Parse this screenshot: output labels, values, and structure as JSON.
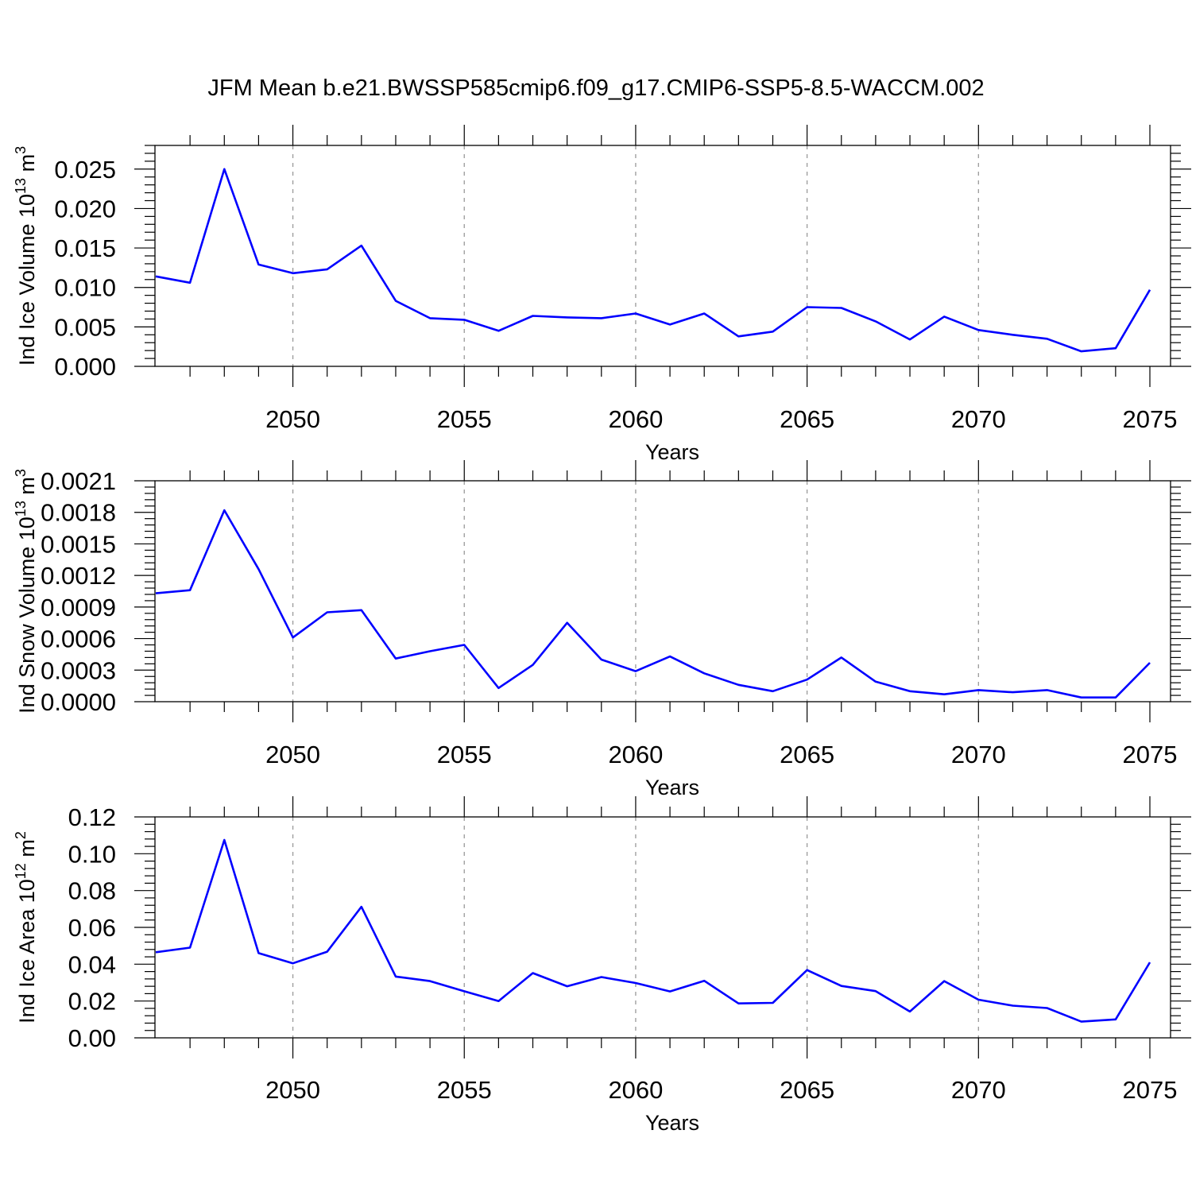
{
  "title": "JFM Mean b.e21.BWSSP585cmip6.f09_g17.CMIP6-SSP5-8.5-WACCM.002",
  "line_color": "#0000ff",
  "chart_data": [
    {
      "type": "line",
      "xlabel": "Years",
      "ylabel": "Ind Ice Volume 10",
      "ylabel_exp": "13",
      "ylabel_unit": "m",
      "ylabel_unit_exp": "3",
      "xlim": [
        2046,
        2075
      ],
      "ylim": [
        0,
        0.028
      ],
      "xticks": [
        2050,
        2055,
        2060,
        2065,
        2070,
        2075
      ],
      "yticks": [
        0.0,
        0.005,
        0.01,
        0.015,
        0.02,
        0.025
      ],
      "ytick_labels": [
        "0.000",
        "0.005",
        "0.010",
        "0.015",
        "0.020",
        "0.025"
      ],
      "x_grid": "dashed vertical at major x ticks",
      "series": [
        {
          "x": [
            2046,
            2047,
            2048,
            2049,
            2050,
            2051,
            2052,
            2053,
            2054,
            2055,
            2056,
            2057,
            2058,
            2059,
            2060,
            2061,
            2062,
            2063,
            2064,
            2065,
            2066,
            2067,
            2068,
            2069,
            2070,
            2071,
            2072,
            2073,
            2074,
            2075
          ],
          "values": [
            0.0114,
            0.0106,
            0.025,
            0.0129,
            0.0118,
            0.0123,
            0.0153,
            0.0083,
            0.0061,
            0.0059,
            0.0045,
            0.0064,
            0.0062,
            0.0061,
            0.0067,
            0.0053,
            0.0067,
            0.0038,
            0.0044,
            0.0075,
            0.0074,
            0.0057,
            0.0034,
            0.0063,
            0.0046,
            0.004,
            0.0035,
            0.0019,
            0.0023,
            0.0097
          ]
        }
      ]
    },
    {
      "type": "line",
      "xlabel": "Years",
      "ylabel": "Ind Snow Volume 10",
      "ylabel_exp": "13",
      "ylabel_unit": "m",
      "ylabel_unit_exp": "3",
      "xlim": [
        2046,
        2075
      ],
      "ylim": [
        0,
        0.0021
      ],
      "xticks": [
        2050,
        2055,
        2060,
        2065,
        2070,
        2075
      ],
      "yticks": [
        0.0,
        0.0003,
        0.0006,
        0.0009,
        0.0012,
        0.0015,
        0.0018,
        0.0021
      ],
      "ytick_labels": [
        "0.0000",
        "0.0003",
        "0.0006",
        "0.0009",
        "0.0012",
        "0.0015",
        "0.0018",
        "0.0021"
      ],
      "x_grid": "dashed vertical at major x ticks",
      "series": [
        {
          "x": [
            2046,
            2047,
            2048,
            2049,
            2050,
            2051,
            2052,
            2053,
            2054,
            2055,
            2056,
            2057,
            2058,
            2059,
            2060,
            2061,
            2062,
            2063,
            2064,
            2065,
            2066,
            2067,
            2068,
            2069,
            2070,
            2071,
            2072,
            2073,
            2074,
            2075
          ],
          "values": [
            0.00103,
            0.00106,
            0.00182,
            0.00126,
            0.00061,
            0.00085,
            0.00087,
            0.00041,
            0.00048,
            0.00054,
            0.00013,
            0.00035,
            0.00075,
            0.0004,
            0.00029,
            0.00043,
            0.00027,
            0.00016,
            0.0001,
            0.00021,
            0.00042,
            0.00019,
            0.0001,
            7e-05,
            0.00011,
            9e-05,
            0.00011,
            4e-05,
            4e-05,
            0.00037
          ]
        }
      ]
    },
    {
      "type": "line",
      "xlabel": "Years",
      "ylabel": "Ind Ice Area 10",
      "ylabel_exp": "12",
      "ylabel_unit": "m",
      "ylabel_unit_exp": "2",
      "xlim": [
        2046,
        2075
      ],
      "ylim": [
        0,
        0.12
      ],
      "xticks": [
        2050,
        2055,
        2060,
        2065,
        2070,
        2075
      ],
      "yticks": [
        0.0,
        0.02,
        0.04,
        0.06,
        0.08,
        0.1,
        0.12
      ],
      "ytick_labels": [
        "0.00",
        "0.02",
        "0.04",
        "0.06",
        "0.08",
        "0.10",
        "0.12"
      ],
      "x_grid": "dashed vertical at major x ticks",
      "series": [
        {
          "x": [
            2046,
            2047,
            2048,
            2049,
            2050,
            2051,
            2052,
            2053,
            2054,
            2055,
            2056,
            2057,
            2058,
            2059,
            2060,
            2061,
            2062,
            2063,
            2064,
            2065,
            2066,
            2067,
            2068,
            2069,
            2070,
            2071,
            2072,
            2073,
            2074,
            2075
          ],
          "values": [
            0.0465,
            0.049,
            0.1075,
            0.046,
            0.0405,
            0.0468,
            0.0712,
            0.0333,
            0.0308,
            0.0253,
            0.02,
            0.0352,
            0.028,
            0.033,
            0.0298,
            0.0252,
            0.031,
            0.0187,
            0.019,
            0.0368,
            0.0282,
            0.0254,
            0.0143,
            0.0308,
            0.0207,
            0.0175,
            0.0162,
            0.0088,
            0.01,
            0.041
          ]
        }
      ]
    }
  ]
}
